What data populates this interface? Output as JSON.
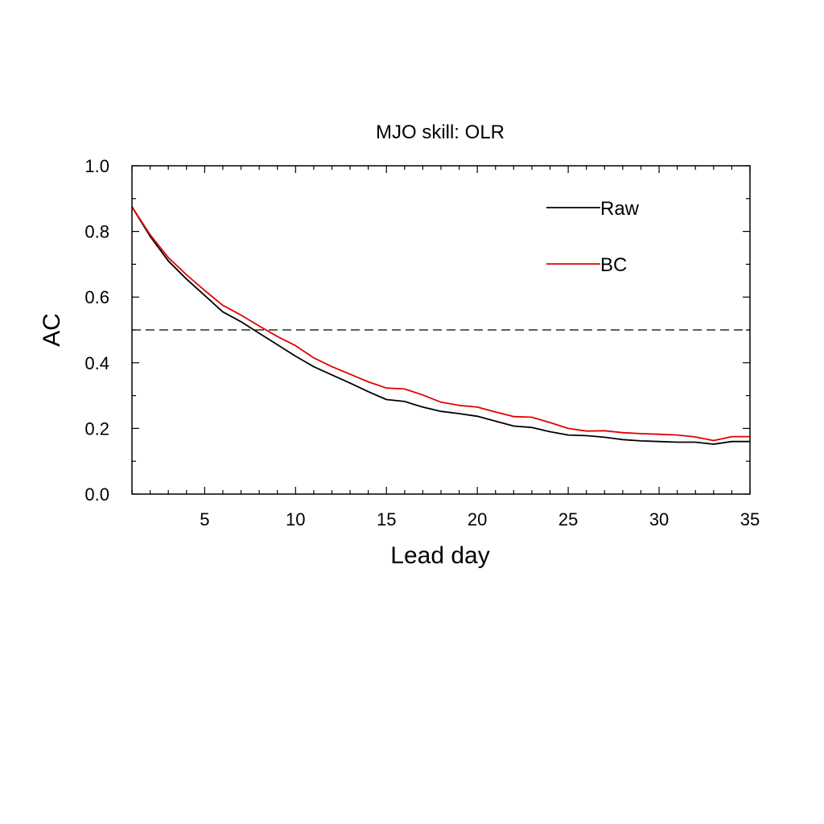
{
  "chart_data": {
    "type": "line",
    "title": "MJO skill: OLR",
    "xlabel": "Lead day",
    "ylabel": "AC",
    "xlim": [
      1,
      35
    ],
    "ylim": [
      0.0,
      1.0
    ],
    "xticks": [
      5,
      10,
      15,
      20,
      25,
      30,
      35
    ],
    "yticks": [
      0.0,
      0.2,
      0.4,
      0.6,
      0.8,
      1.0
    ],
    "ytick_labels": [
      "0.0",
      "0.2",
      "0.4",
      "0.6",
      "0.8",
      "1.0"
    ],
    "reference_line": {
      "y": 0.5,
      "style": "dashed",
      "color": "#000000"
    },
    "legend_placement": "top-right",
    "x": [
      1,
      2,
      3,
      4,
      5,
      6,
      7,
      8,
      9,
      10,
      11,
      12,
      13,
      14,
      15,
      16,
      17,
      18,
      19,
      20,
      21,
      22,
      23,
      24,
      25,
      26,
      27,
      28,
      29,
      30,
      31,
      32,
      33,
      34,
      35
    ],
    "series": [
      {
        "name": "Raw",
        "color": "#000000",
        "values": [
          0.875,
          0.785,
          0.71,
          0.655,
          0.605,
          0.555,
          0.525,
          0.49,
          0.455,
          0.42,
          0.388,
          0.363,
          0.338,
          0.312,
          0.288,
          0.282,
          0.265,
          0.252,
          0.245,
          0.237,
          0.222,
          0.207,
          0.203,
          0.19,
          0.18,
          0.178,
          0.173,
          0.166,
          0.162,
          0.16,
          0.158,
          0.158,
          0.152,
          0.16,
          0.16
        ]
      },
      {
        "name": "BC",
        "color": "#e00000",
        "values": [
          0.875,
          0.79,
          0.72,
          0.668,
          0.62,
          0.575,
          0.545,
          0.512,
          0.48,
          0.452,
          0.415,
          0.388,
          0.365,
          0.342,
          0.323,
          0.32,
          0.302,
          0.28,
          0.27,
          0.265,
          0.25,
          0.236,
          0.234,
          0.218,
          0.2,
          0.192,
          0.193,
          0.187,
          0.184,
          0.182,
          0.18,
          0.174,
          0.163,
          0.175,
          0.175
        ]
      }
    ]
  }
}
